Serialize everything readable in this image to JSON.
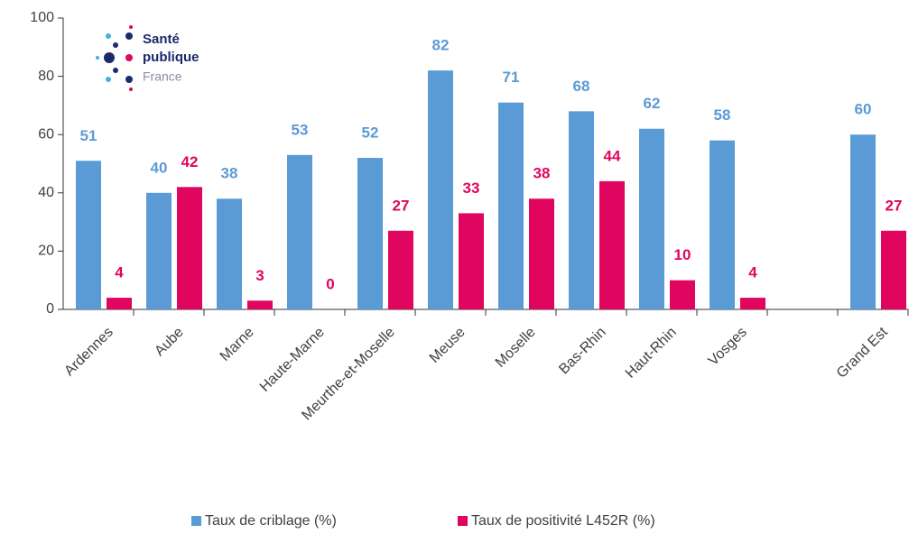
{
  "chart_data": {
    "type": "bar",
    "categories": [
      "Ardennes",
      "Aube",
      "Marne",
      "Haute-Marne",
      "Meurthe-et-Moselle",
      "Meuse",
      "Moselle",
      "Bas-Rhin",
      "Haut-Rhin",
      "Vosges",
      null,
      "Grand Est"
    ],
    "series": [
      {
        "name": "Taux de criblage (%)",
        "color": "#5b9bd5",
        "values": [
          51,
          40,
          38,
          53,
          52,
          82,
          71,
          68,
          62,
          58,
          null,
          60
        ]
      },
      {
        "name": "Taux de positivité L452R (%)",
        "color": "#e0055f",
        "values": [
          4,
          42,
          3,
          0,
          27,
          33,
          38,
          44,
          10,
          4,
          null,
          27
        ]
      }
    ],
    "ylim": [
      0,
      100
    ],
    "yticks": [
      0,
      20,
      40,
      60,
      80,
      100
    ],
    "legend": "bottom",
    "logo": [
      "Santé",
      "publique",
      "France"
    ]
  }
}
